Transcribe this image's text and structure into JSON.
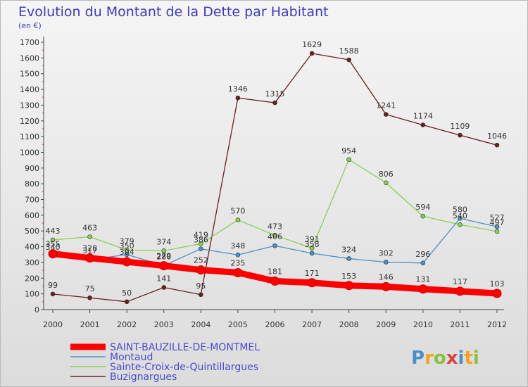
{
  "chart_data": {
    "type": "line",
    "title": "Evolution du Montant de la Dette par Habitant",
    "subtitle": "(en €)",
    "xlabel": "",
    "ylabel": "",
    "categories": [
      "2000",
      "2001",
      "2002",
      "2003",
      "2004",
      "2005",
      "2006",
      "2007",
      "2008",
      "2009",
      "2010",
      "2011",
      "2012"
    ],
    "ylim": [
      0,
      1700
    ],
    "yticks": [
      0,
      100,
      200,
      300,
      400,
      500,
      600,
      700,
      800,
      900,
      1000,
      1100,
      1200,
      1300,
      1400,
      1500,
      1600,
      1700
    ],
    "grid": false,
    "legend_placement": "bottom-left",
    "series": [
      {
        "name": "SAINT-BAUZILLE-DE-MONTMEL",
        "color": "#ff0000",
        "values": [
          355,
          328,
          304,
          279,
          252,
          235,
          181,
          171,
          153,
          146,
          131,
          117,
          103
        ]
      },
      {
        "name": "Montaud",
        "color": "#4a90c8",
        "values": [
          340,
          317,
          350,
          280,
          386,
          348,
          406,
          358,
          324,
          302,
          296,
          580,
          527
        ]
      },
      {
        "name": "Sainte-Croix-de-Quintillargues",
        "color": "#88d14e",
        "values": [
          443,
          463,
          379,
          374,
          419,
          570,
          473,
          391,
          954,
          806,
          594,
          540,
          497
        ]
      },
      {
        "name": "Buzignargues",
        "color": "#6b1e1e",
        "values": [
          99,
          75,
          50,
          141,
          95,
          1346,
          1315,
          1629,
          1588,
          1241,
          1174,
          1109,
          1046
        ]
      }
    ]
  },
  "logo": {
    "text": "Proxiti"
  }
}
